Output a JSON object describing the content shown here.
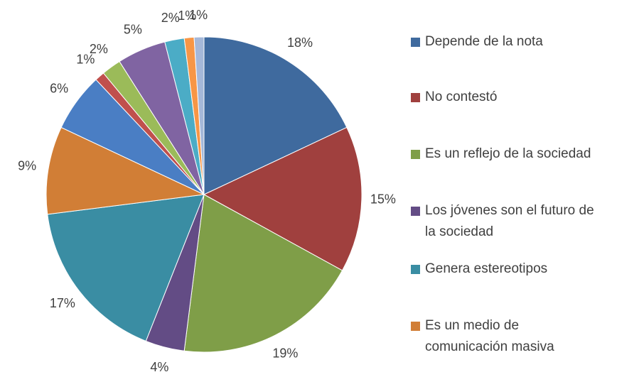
{
  "chart_data": {
    "type": "pie",
    "categories": [
      "Depende de la nota",
      "No contestó",
      "Es un reflejo de la sociedad",
      "Los jóvenes son el futuro de la sociedad",
      "Genera estereotipos",
      "Es un medio de comunicación masiva",
      null,
      null,
      null,
      null,
      null,
      null,
      null
    ],
    "values": [
      18,
      15,
      19,
      4,
      17,
      9,
      6,
      1,
      2,
      5,
      2,
      1,
      1
    ],
    "value_labels": [
      "18%",
      "15%",
      "19%",
      "4%",
      "17%",
      "9%",
      "6%",
      "1%",
      "2%",
      "5%",
      "2%",
      "1%",
      "1%"
    ],
    "colors": [
      "#3f6a9e",
      "#a0403e",
      "#7f9e48",
      "#634c85",
      "#3a8da3",
      "#d17e36",
      "#4a7ec4",
      "#c0504d",
      "#9bbb59",
      "#8064a2",
      "#4bacc6",
      "#f79646",
      "#a5b8d9"
    ],
    "legend": "right"
  }
}
